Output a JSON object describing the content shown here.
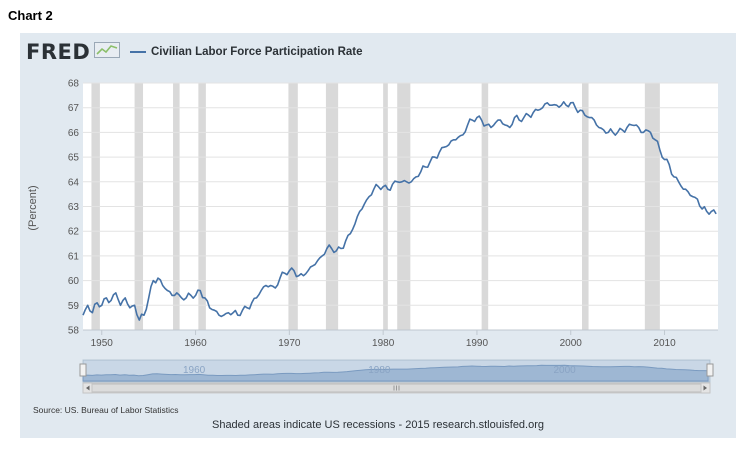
{
  "page_caption": "Chart 2",
  "logo_text": "FRED",
  "footer_note": "Shaded areas indicate US recessions - 2015 research.stlouisfed.org",
  "source_note": "Source: US. Bureau of Labor Statistics",
  "navigator": {
    "labels": [
      "1960",
      "1980",
      "2000"
    ],
    "scroll_left_icon": "arrow-left-icon",
    "scroll_right_icon": "arrow-right-icon",
    "scroll_grip_icon": "grip-icon"
  },
  "chart_data": {
    "type": "line",
    "title": "",
    "xlabel": "",
    "ylabel": "(Percent)",
    "xlim": [
      1948,
      2015.7
    ],
    "ylim": [
      58,
      68
    ],
    "x_ticks": [
      1950,
      1960,
      1970,
      1980,
      1990,
      2000,
      2010
    ],
    "y_ticks": [
      58,
      59,
      60,
      61,
      62,
      63,
      64,
      65,
      66,
      67,
      68
    ],
    "grid": "horizontal",
    "legend": "top-left",
    "line_color": "#4572a7",
    "recession_color": "#d9d9d9",
    "series": [
      {
        "name": "Civilian Labor Force Participation Rate",
        "x": [
          1948.0,
          1948.5,
          1949.0,
          1949.5,
          1950.0,
          1950.5,
          1951.0,
          1951.5,
          1952.0,
          1952.5,
          1953.0,
          1953.5,
          1954.0,
          1954.5,
          1955.0,
          1955.5,
          1956.0,
          1956.5,
          1957.0,
          1957.5,
          1958.0,
          1958.5,
          1959.0,
          1959.5,
          1960.0,
          1960.5,
          1961.0,
          1961.5,
          1962.0,
          1962.5,
          1963.0,
          1963.5,
          1964.0,
          1964.5,
          1965.0,
          1965.5,
          1966.0,
          1966.5,
          1967.0,
          1967.5,
          1968.0,
          1968.5,
          1969.0,
          1969.5,
          1970.0,
          1970.5,
          1971.0,
          1971.5,
          1972.0,
          1972.5,
          1973.0,
          1973.5,
          1974.0,
          1974.5,
          1975.0,
          1975.5,
          1976.0,
          1976.5,
          1977.0,
          1977.5,
          1978.0,
          1978.5,
          1979.0,
          1979.5,
          1980.0,
          1980.5,
          1981.0,
          1981.5,
          1982.0,
          1982.5,
          1983.0,
          1983.5,
          1984.0,
          1984.5,
          1985.0,
          1985.5,
          1986.0,
          1986.5,
          1987.0,
          1987.5,
          1988.0,
          1988.5,
          1989.0,
          1989.5,
          1990.0,
          1990.5,
          1991.0,
          1991.5,
          1992.0,
          1992.5,
          1993.0,
          1993.5,
          1994.0,
          1994.5,
          1995.0,
          1995.5,
          1996.0,
          1996.5,
          1997.0,
          1997.5,
          1998.0,
          1998.5,
          1999.0,
          1999.5,
          2000.0,
          2000.5,
          2001.0,
          2001.5,
          2002.0,
          2002.5,
          2003.0,
          2003.5,
          2004.0,
          2004.5,
          2005.0,
          2005.5,
          2006.0,
          2006.5,
          2007.0,
          2007.5,
          2008.0,
          2008.5,
          2009.0,
          2009.5,
          2010.0,
          2010.5,
          2011.0,
          2011.5,
          2012.0,
          2012.5,
          2013.0,
          2013.5,
          2014.0,
          2014.5,
          2015.0,
          2015.5
        ],
        "y": [
          58.6,
          59.0,
          58.7,
          59.1,
          59.0,
          59.3,
          59.2,
          59.5,
          59.0,
          59.3,
          58.9,
          59.0,
          58.4,
          58.6,
          59.3,
          60.0,
          60.1,
          59.8,
          59.6,
          59.4,
          59.5,
          59.3,
          59.3,
          59.4,
          59.4,
          59.6,
          59.3,
          58.9,
          58.8,
          58.6,
          58.6,
          58.7,
          58.7,
          58.6,
          58.8,
          58.9,
          59.1,
          59.3,
          59.6,
          59.8,
          59.8,
          59.7,
          60.1,
          60.3,
          60.4,
          60.4,
          60.2,
          60.2,
          60.4,
          60.6,
          60.8,
          61.0,
          61.3,
          61.3,
          61.2,
          61.3,
          61.6,
          61.9,
          62.3,
          62.8,
          63.1,
          63.4,
          63.7,
          63.8,
          63.8,
          63.7,
          63.9,
          64.0,
          64.0,
          64.0,
          64.0,
          64.2,
          64.4,
          64.6,
          64.8,
          65.0,
          65.2,
          65.4,
          65.5,
          65.7,
          65.8,
          65.9,
          66.3,
          66.5,
          66.6,
          66.5,
          66.3,
          66.2,
          66.4,
          66.5,
          66.3,
          66.2,
          66.6,
          66.5,
          66.6,
          66.7,
          66.8,
          66.9,
          67.0,
          67.2,
          67.1,
          67.1,
          67.1,
          67.1,
          67.2,
          67.0,
          66.9,
          66.7,
          66.6,
          66.5,
          66.2,
          66.1,
          66.0,
          66.0,
          66.0,
          66.1,
          66.2,
          66.3,
          66.3,
          66.0,
          66.1,
          66.0,
          65.7,
          65.3,
          64.9,
          64.7,
          64.2,
          64.0,
          63.7,
          63.6,
          63.4,
          63.3,
          62.9,
          62.8,
          62.8,
          62.7
        ]
      }
    ],
    "recessions": [
      [
        1948.9,
        1949.8
      ],
      [
        1953.5,
        1954.4
      ],
      [
        1957.6,
        1958.3
      ],
      [
        1960.3,
        1961.1
      ],
      [
        1969.9,
        1970.9
      ],
      [
        1973.9,
        1975.2
      ],
      [
        1980.0,
        1980.5
      ],
      [
        1981.5,
        1982.9
      ],
      [
        1990.5,
        1991.2
      ],
      [
        2001.2,
        2001.9
      ],
      [
        2007.9,
        2009.5
      ]
    ]
  }
}
